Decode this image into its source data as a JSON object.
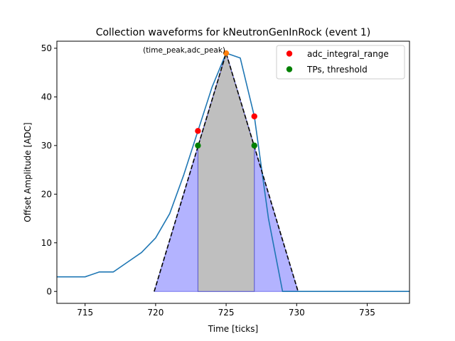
{
  "chart_data": {
    "type": "line",
    "title": "Collection waveforms for kNeutronGenInRock (event 1)",
    "xlabel": "Time [ticks]",
    "ylabel": "Offset Amplitude [ADC]",
    "xlim": [
      713,
      738
    ],
    "ylim": [
      -2.45,
      51.45
    ],
    "x_ticks": [
      715,
      720,
      725,
      730,
      735
    ],
    "y_ticks": [
      0,
      10,
      20,
      30,
      40,
      50
    ],
    "grid": false,
    "legend_position": "top-right",
    "colors": {
      "waveform": "#1f77b4",
      "triangle": "#000000",
      "fill_gray": "#bfbfbf",
      "fill_blue": "#b3b3ff",
      "adc_points": "#ff0000",
      "tp_points": "#008000",
      "peak_point": "#ff7f0e"
    },
    "series": [
      {
        "role": "waveform",
        "x": [
          713,
          714,
          715,
          716,
          717,
          718,
          719,
          720,
          721,
          722,
          723,
          724,
          725,
          726,
          727,
          728,
          729,
          730,
          731,
          732,
          733,
          734,
          735,
          736,
          737,
          738
        ],
        "y": [
          3,
          3,
          3,
          4,
          4,
          6,
          8,
          11,
          16,
          24,
          33,
          42,
          49,
          48,
          36,
          15,
          0,
          0,
          0,
          0,
          0,
          0,
          0,
          0,
          0,
          0
        ]
      },
      {
        "role": "triangle",
        "x": [
          719.9,
          725,
          730.1
        ],
        "y": [
          0,
          49,
          0
        ]
      }
    ],
    "fill_regions": [
      {
        "role": "gray",
        "x": [
          723,
          727
        ]
      },
      {
        "role": "blue",
        "x": [
          719.9,
          730.1
        ]
      }
    ],
    "adc_integral_range": {
      "name": "adc_integral_range",
      "x": [
        723,
        727
      ],
      "y": [
        33,
        36
      ]
    },
    "tps_threshold": {
      "name": "TPs, threshold",
      "x": [
        723,
        727
      ],
      "y": [
        30,
        30
      ]
    },
    "peak": {
      "x": 725,
      "y": 49,
      "label": "(time_peak,adc_peak)"
    }
  }
}
